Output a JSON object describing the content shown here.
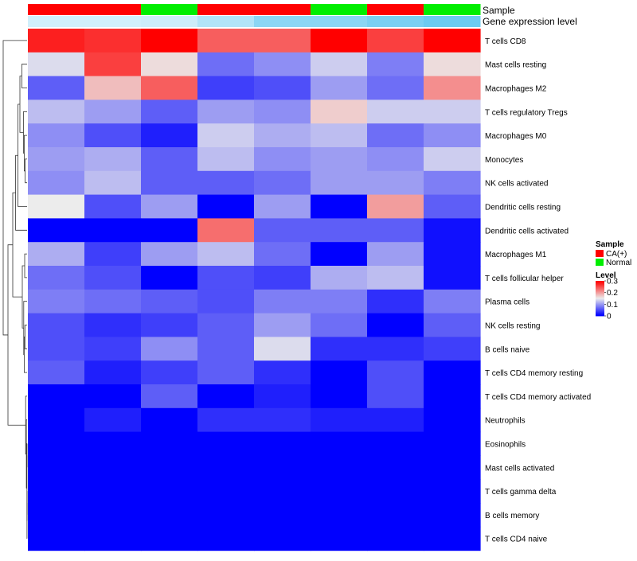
{
  "chart_data": {
    "type": "heatmap",
    "annotation_labels": [
      "Sample",
      "Gene expression level"
    ],
    "sample_groups": [
      "CA(+)",
      "CA(+)",
      "Normal",
      "CA(+)",
      "CA(+)",
      "Normal",
      "CA(+)",
      "Normal"
    ],
    "gene_expression_level": [
      0.3,
      0.3,
      0.32,
      0.5,
      0.75,
      0.75,
      0.85,
      0.95
    ],
    "rows": [
      "T cells CD8",
      "Mast cells resting",
      "Macrophages M2",
      "T cells regulatory  Tregs",
      "Macrophages M0",
      "Monocytes",
      "NK cells activated",
      "Dendritic cells resting",
      "Dendritic cells activated",
      "Macrophages M1",
      "T cells follicular helper",
      "Plasma cells",
      "NK cells resting",
      "B cells naive",
      "T cells CD4 memory resting",
      "T cells CD4 memory activated",
      "Neutrophils",
      "Eosinophils",
      "Mast cells activated",
      "T cells gamma delta",
      "B cells memory",
      "T cells CD4 naive"
    ],
    "values": [
      [
        0.28,
        0.27,
        0.3,
        0.24,
        0.24,
        0.3,
        0.26,
        0.3
      ],
      [
        0.14,
        0.26,
        0.16,
        0.07,
        0.09,
        0.13,
        0.08,
        0.16
      ],
      [
        0.06,
        0.18,
        0.24,
        0.04,
        0.05,
        0.1,
        0.07,
        0.21
      ],
      [
        0.12,
        0.1,
        0.06,
        0.1,
        0.09,
        0.17,
        0.13,
        0.13
      ],
      [
        0.09,
        0.05,
        0.02,
        0.13,
        0.11,
        0.12,
        0.07,
        0.09
      ],
      [
        0.1,
        0.11,
        0.06,
        0.12,
        0.09,
        0.1,
        0.09,
        0.13
      ],
      [
        0.09,
        0.12,
        0.06,
        0.06,
        0.07,
        0.1,
        0.1,
        0.08
      ],
      [
        0.15,
        0.05,
        0.1,
        0.0,
        0.1,
        0.0,
        0.2,
        0.06
      ],
      [
        0.0,
        0.0,
        0.0,
        0.23,
        0.06,
        0.06,
        0.06,
        0.01
      ],
      [
        0.11,
        0.04,
        0.1,
        0.12,
        0.07,
        0.0,
        0.1,
        0.01
      ],
      [
        0.07,
        0.05,
        0.0,
        0.05,
        0.04,
        0.11,
        0.12,
        0.01
      ],
      [
        0.08,
        0.07,
        0.06,
        0.05,
        0.08,
        0.08,
        0.03,
        0.08
      ],
      [
        0.05,
        0.03,
        0.04,
        0.06,
        0.1,
        0.07,
        0.0,
        0.06
      ],
      [
        0.05,
        0.04,
        0.09,
        0.06,
        0.14,
        0.03,
        0.03,
        0.04
      ],
      [
        0.06,
        0.02,
        0.04,
        0.06,
        0.03,
        0.0,
        0.05,
        0.0
      ],
      [
        0.0,
        0.0,
        0.06,
        0.0,
        0.02,
        0.0,
        0.05,
        0.0
      ],
      [
        0.0,
        0.02,
        0.0,
        0.03,
        0.03,
        0.02,
        0.02,
        0.0
      ],
      [
        0.0,
        0.0,
        0.0,
        0.0,
        0.0,
        0.0,
        0.0,
        0.0
      ],
      [
        0.0,
        0.0,
        0.0,
        0.0,
        0.0,
        0.0,
        0.0,
        0.0
      ],
      [
        0.0,
        0.0,
        0.0,
        0.0,
        0.0,
        0.0,
        0.0,
        0.0
      ],
      [
        0.0,
        0.0,
        0.0,
        0.0,
        0.0,
        0.0,
        0.0,
        0.0
      ],
      [
        0.0,
        0.0,
        0.0,
        0.0,
        0.0,
        0.0,
        0.0,
        0.0
      ]
    ],
    "color_scale": {
      "stops": [
        0,
        0.15,
        0.3
      ],
      "colors": [
        "#0000ff",
        "#ececec",
        "#ff0000"
      ],
      "ticks": [
        0.3,
        0.2,
        0.1,
        0
      ]
    },
    "row_dendrogram": {
      "merges": [
        [
          -18,
          -19
        ],
        [
          -20,
          -21
        ],
        [
          -22,
          2
        ],
        [
          1,
          3
        ],
        [
          -17,
          4
        ],
        [
          -16,
          5
        ],
        [
          -13,
          -14
        ],
        [
          -15,
          7
        ],
        [
          -10,
          -11
        ],
        [
          -12,
          8
        ],
        [
          9,
          10
        ],
        [
          -6,
          -7
        ],
        [
          -5,
          12
        ],
        [
          -4,
          13
        ],
        [
          -3,
          -2
        ],
        [
          15,
          14
        ],
        [
          16,
          -8
        ],
        [
          17,
          -9
        ],
        [
          18,
          11
        ],
        [
          19,
          6
        ],
        [
          -1,
          20
        ]
      ],
      "heights": [
        0.002,
        0.002,
        0.003,
        0.005,
        0.03,
        0.06,
        0.09,
        0.12,
        0.1,
        0.14,
        0.2,
        0.08,
        0.12,
        0.15,
        0.22,
        0.3,
        0.38,
        0.48,
        0.6,
        0.8,
        1.0
      ]
    },
    "legends": [
      {
        "title": "Sample",
        "entries": [
          {
            "label": "CA(+)",
            "color": "#ff0000"
          },
          {
            "label": "Normal",
            "color": "#00ee00"
          }
        ]
      },
      {
        "title": "Level"
      }
    ]
  }
}
